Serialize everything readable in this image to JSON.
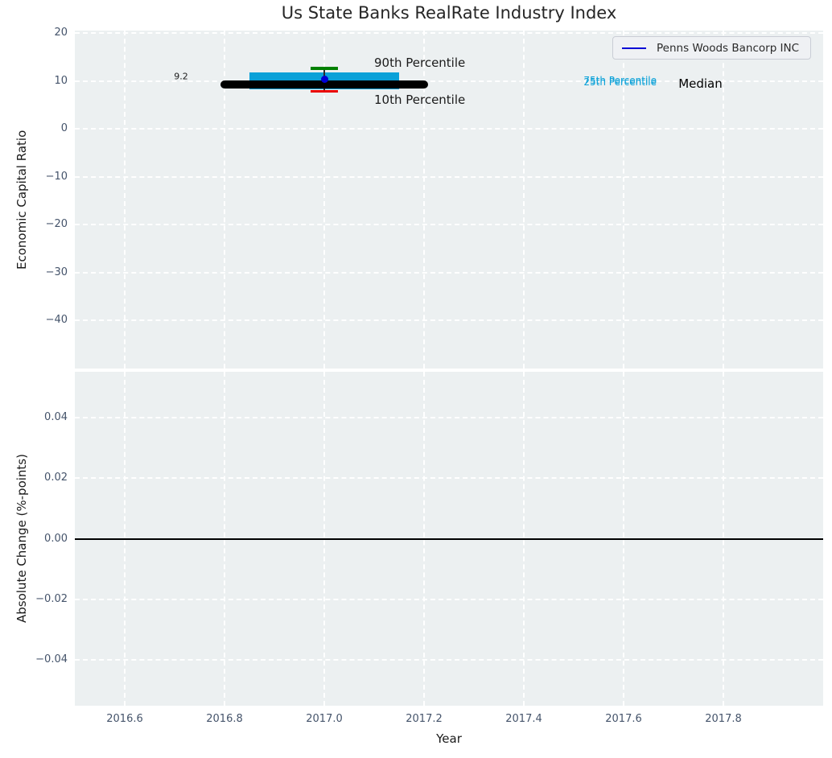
{
  "figure": {
    "title": "Us State Banks RealRate Industry Index"
  },
  "chart_data": [
    {
      "type": "boxplot",
      "title": "Us State Banks RealRate Industry Index",
      "xlabel": "Year",
      "ylabel": "Economic Capital Ratio",
      "xlim": [
        2016.5,
        2018.0
      ],
      "ylim": [
        -50,
        20.5
      ],
      "grid": true,
      "xticks": {
        "values": [
          2016.6,
          2016.8,
          2017.0,
          2017.2,
          2017.4,
          2017.6,
          2017.8
        ],
        "labels": [
          "2016.6",
          "2016.8",
          "2017.0",
          "2017.2",
          "2017.4",
          "2017.6",
          "2017.8"
        ]
      },
      "yticks": {
        "values": [
          20,
          10,
          0,
          -10,
          -20,
          -30,
          -40
        ],
        "labels": [
          "20",
          "10",
          "0",
          "−10",
          "−20",
          "−30",
          "−40"
        ]
      },
      "legend": {
        "label": "Penns Woods Bancorp INC",
        "line_color": "#0000d6",
        "position": "upper right"
      },
      "box": {
        "year": 2017.0,
        "median": 9.2,
        "median_span": [
          2016.8,
          2017.2
        ],
        "box_span": [
          2016.85,
          2017.15
        ],
        "p25": 8.2,
        "p75": 11.7,
        "p10": 7.8,
        "p90": 12.6,
        "cap_half_width": 0.028
      },
      "company_point": {
        "name": "Penns Woods Bancorp INC",
        "year": 2017.0,
        "value": 10.3
      },
      "annotations": [
        {
          "text": "9.2",
          "x": 2016.713,
          "y": 10.9,
          "anchor": "middle",
          "color": "#1a1a1a",
          "size": 11
        },
        {
          "text": "90th Percentile",
          "x": 2017.1,
          "y": 13.8,
          "anchor": "start",
          "color": "#1a1a1a",
          "size": 15
        },
        {
          "text": "10th Percentile",
          "x": 2017.1,
          "y": 6.1,
          "anchor": "start",
          "color": "#1a1a1a",
          "size": 15
        },
        {
          "text": "75th Percentile",
          "x": 2017.52,
          "y": 10.05,
          "anchor": "start",
          "color": "#0aa1d8",
          "size": 12
        },
        {
          "text": "25th Percentile",
          "x": 2017.52,
          "y": 9.7,
          "anchor": "start",
          "color": "#0aa1d8",
          "size": 12
        },
        {
          "text": "Median",
          "x": 2017.71,
          "y": 9.4,
          "anchor": "start",
          "color": "#000000",
          "size": 15
        }
      ],
      "colors": {
        "box": "#0aa1d8",
        "median": "#000000",
        "p90_cap": "#008000",
        "p10_cap": "#e80000",
        "whisker": "#2a2a2a",
        "company_marker": "#0000d6"
      }
    },
    {
      "type": "line",
      "xlabel": "Year",
      "ylabel": "Absolute Change (%-points)",
      "xlim": [
        2016.5,
        2018.0
      ],
      "ylim": [
        -0.055,
        0.055
      ],
      "grid": true,
      "xticks": {
        "values": [
          2016.6,
          2016.8,
          2017.0,
          2017.2,
          2017.4,
          2017.6,
          2017.8
        ],
        "labels": [
          "2016.6",
          "2016.8",
          "2017.0",
          "2017.2",
          "2017.4",
          "2017.6",
          "2017.8"
        ]
      },
      "yticks": {
        "values": [
          0.04,
          0.02,
          0.0,
          -0.02,
          -0.04
        ],
        "labels": [
          "0.04",
          "0.02",
          "0.00",
          "−0.02",
          "−0.04"
        ]
      },
      "zero_line": {
        "y": 0.0,
        "color": "#000000"
      }
    }
  ],
  "style": {
    "axes_background": "#ecf0f1",
    "grid_color": "#ffffff",
    "tick_label_color": "#44536a",
    "axis_label_color": "#1a1a1a",
    "title_color": "#262626",
    "legend_background": "#eff1f4",
    "legend_border": "#c9cdd5"
  }
}
